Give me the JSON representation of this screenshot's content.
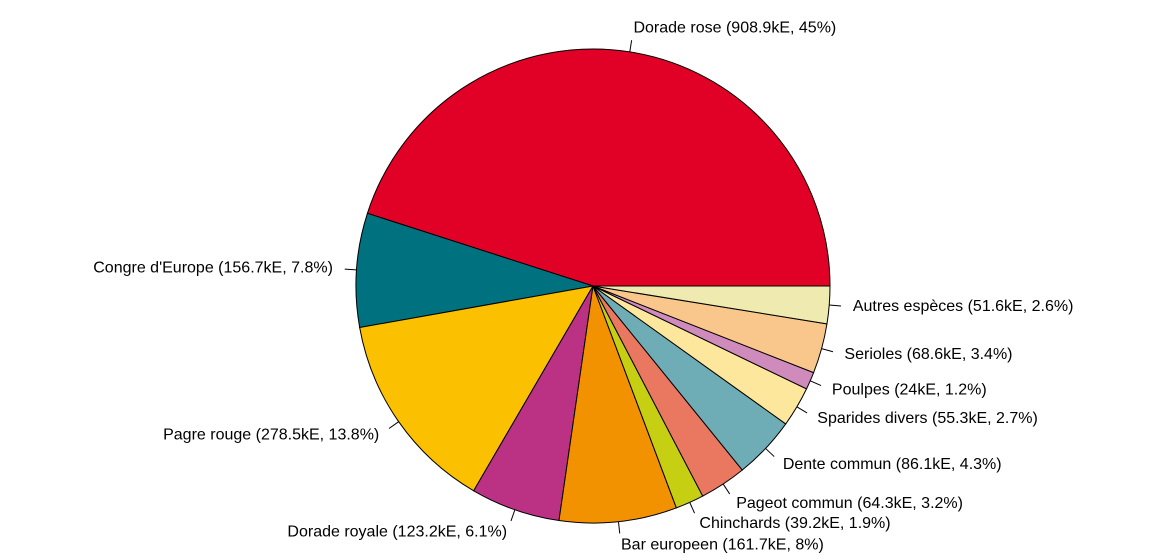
{
  "chart_data": {
    "type": "pie",
    "values": [
      908.9,
      156.7,
      278.5,
      123.2,
      161.7,
      39.2,
      64.3,
      86.1,
      55.3,
      24,
      68.6,
      51.6
    ],
    "value_labels": [
      "Dorade rose (908.9kE, 45%)",
      "Congre d'Europe (156.7kE, 7.8%)",
      "Pagre rouge (278.5kE, 13.8%)",
      "Dorade royale (123.2kE, 6.1%)",
      "Bar europeen (161.7kE, 8%)",
      "Chinchards (39.2kE, 1.9%)",
      "Pageot commun (64.3kE, 3.2%)",
      "Dente commun (86.1kE, 4.3%)",
      "Sparides divers (55.3kE, 2.7%)",
      "Poulpes (24kE, 1.2%)",
      "Serioles (68.6kE, 3.4%)",
      "Autres espèces (51.6kE, 2.6%)"
    ],
    "colors": [
      "#e10026",
      "#00717f",
      "#fbc000",
      "#bb3285",
      "#f39200",
      "#c6cf12",
      "#ea7760",
      "#6fadb6",
      "#fde79c",
      "#cf8bbc",
      "#f9c78c",
      "#eeeab0"
    ]
  }
}
